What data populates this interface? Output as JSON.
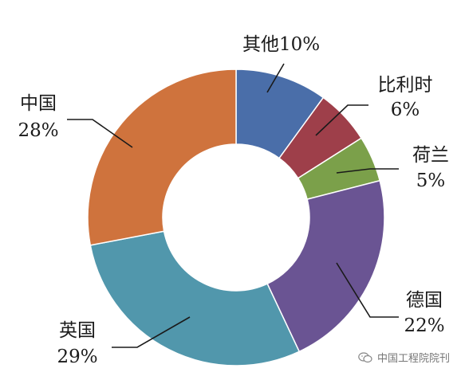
{
  "chart_data": {
    "type": "pie",
    "variant": "donut",
    "slices": [
      {
        "label": "其他",
        "value": 10,
        "pct_text": "10%",
        "color": "#4a6ea9"
      },
      {
        "label": "比利时",
        "value": 6,
        "pct_text": "6%",
        "color": "#9e3f4a"
      },
      {
        "label": "荷兰",
        "value": 5,
        "pct_text": "5%",
        "color": "#7ba04a"
      },
      {
        "label": "德国",
        "value": 22,
        "pct_text": "22%",
        "color": "#6a5493"
      },
      {
        "label": "英国",
        "value": 29,
        "pct_text": "29%",
        "color": "#5197ac"
      },
      {
        "label": "中国",
        "value": 28,
        "pct_text": "28%",
        "color": "#cf733d"
      }
    ],
    "legend": "none",
    "label_style": "leader-lines"
  },
  "watermark": {
    "text": "中国工程院院刊",
    "icon": "wechat-icon"
  }
}
